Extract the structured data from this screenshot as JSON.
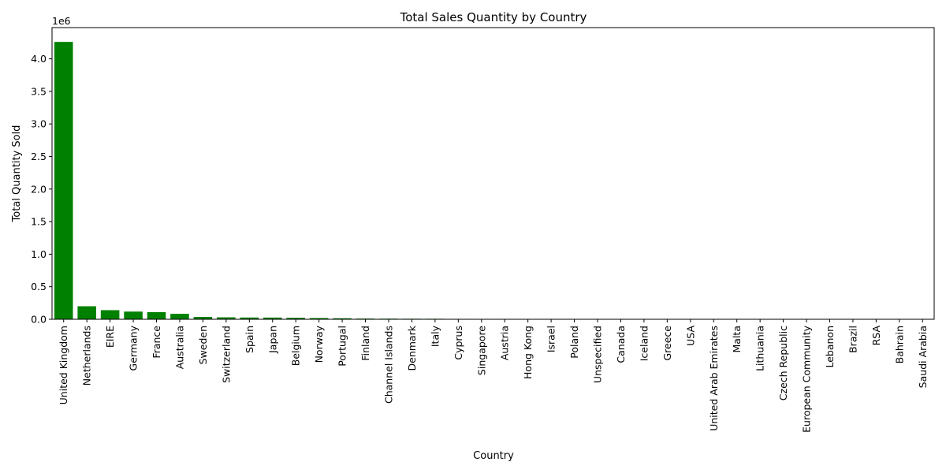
{
  "chart_data": {
    "type": "bar",
    "title": "Total Sales Quantity by Country",
    "xlabel": "Country",
    "ylabel": "Total Quantity Sold",
    "y_scale_note": "1e6",
    "ylim": [
      0,
      4480000
    ],
    "yticks": [
      0,
      500000,
      1000000,
      1500000,
      2000000,
      2500000,
      3000000,
      3500000,
      4000000
    ],
    "ytick_labels": [
      "0.0",
      "0.5",
      "1.0",
      "1.5",
      "2.0",
      "2.5",
      "3.0",
      "3.5",
      "4.0"
    ],
    "bar_color": "#008000",
    "grid": false,
    "legend": "none",
    "categories": [
      "United Kingdom",
      "Netherlands",
      "EIRE",
      "Germany",
      "France",
      "Australia",
      "Sweden",
      "Switzerland",
      "Spain",
      "Japan",
      "Belgium",
      "Norway",
      "Portugal",
      "Finland",
      "Channel Islands",
      "Denmark",
      "Italy",
      "Cyprus",
      "Singapore",
      "Austria",
      "Hong Kong",
      "Israel",
      "Poland",
      "Unspecified",
      "Canada",
      "Iceland",
      "Greece",
      "USA",
      "United Arab Emirates",
      "Malta",
      "Lithuania",
      "Czech Republic",
      "European Community",
      "Lebanon",
      "Brazil",
      "RSA",
      "Bahrain",
      "Saudi Arabia"
    ],
    "values": [
      4260000,
      200000,
      140000,
      118000,
      110000,
      84000,
      36000,
      30000,
      27000,
      26000,
      23000,
      19000,
      16000,
      11000,
      9500,
      8200,
      8000,
      6300,
      5200,
      5000,
      4800,
      4400,
      3700,
      3300,
      2800,
      2500,
      1600,
      1000,
      980,
      950,
      650,
      590,
      500,
      390,
      360,
      350,
      260,
      80
    ]
  }
}
